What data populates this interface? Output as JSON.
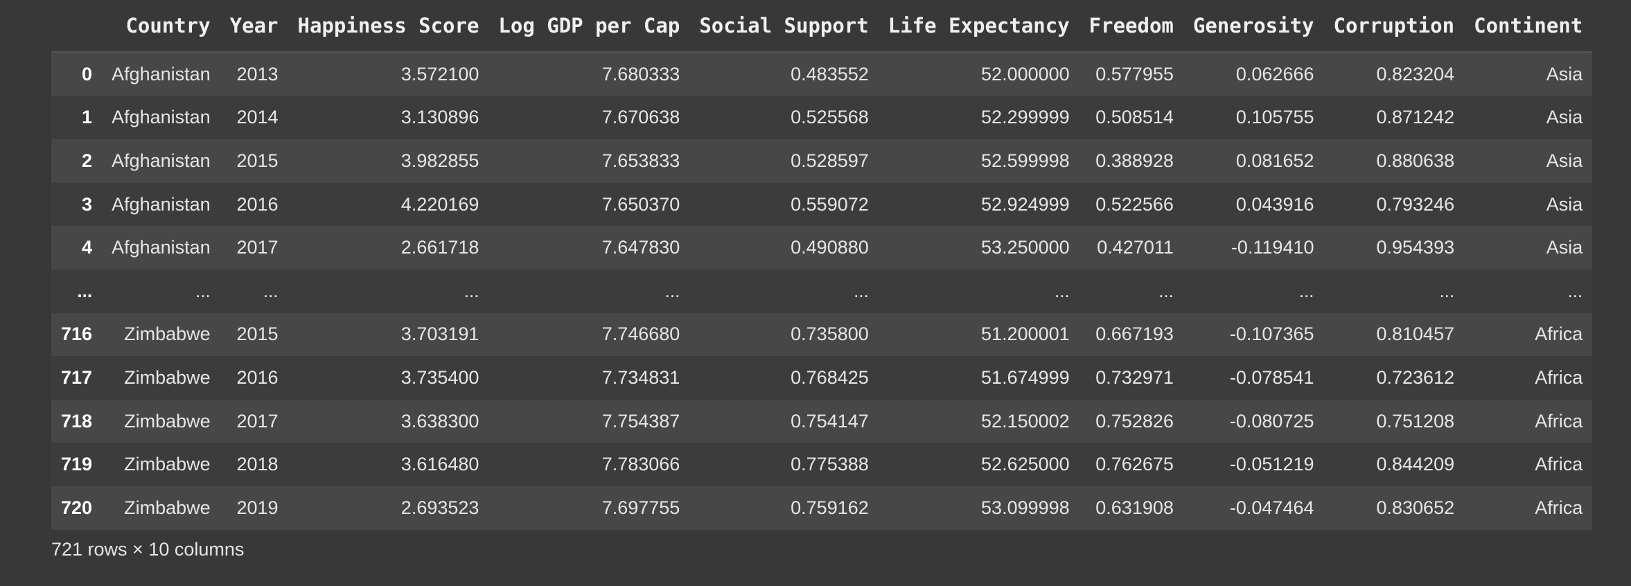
{
  "table": {
    "columns": [
      "",
      "Country",
      "Year",
      "Happiness Score",
      "Log GDP per Cap",
      "Social Support",
      "Life Expectancy",
      "Freedom",
      "Generosity",
      "Corruption",
      "Continent"
    ],
    "rows": [
      [
        "0",
        "Afghanistan",
        "2013",
        "3.572100",
        "7.680333",
        "0.483552",
        "52.000000",
        "0.577955",
        "0.062666",
        "0.823204",
        "Asia"
      ],
      [
        "1",
        "Afghanistan",
        "2014",
        "3.130896",
        "7.670638",
        "0.525568",
        "52.299999",
        "0.508514",
        "0.105755",
        "0.871242",
        "Asia"
      ],
      [
        "2",
        "Afghanistan",
        "2015",
        "3.982855",
        "7.653833",
        "0.528597",
        "52.599998",
        "0.388928",
        "0.081652",
        "0.880638",
        "Asia"
      ],
      [
        "3",
        "Afghanistan",
        "2016",
        "4.220169",
        "7.650370",
        "0.559072",
        "52.924999",
        "0.522566",
        "0.043916",
        "0.793246",
        "Asia"
      ],
      [
        "4",
        "Afghanistan",
        "2017",
        "2.661718",
        "7.647830",
        "0.490880",
        "53.250000",
        "0.427011",
        "-0.119410",
        "0.954393",
        "Asia"
      ],
      [
        "...",
        "...",
        "...",
        "...",
        "...",
        "...",
        "...",
        "...",
        "...",
        "...",
        "..."
      ],
      [
        "716",
        "Zimbabwe",
        "2015",
        "3.703191",
        "7.746680",
        "0.735800",
        "51.200001",
        "0.667193",
        "-0.107365",
        "0.810457",
        "Africa"
      ],
      [
        "717",
        "Zimbabwe",
        "2016",
        "3.735400",
        "7.734831",
        "0.768425",
        "51.674999",
        "0.732971",
        "-0.078541",
        "0.723612",
        "Africa"
      ],
      [
        "718",
        "Zimbabwe",
        "2017",
        "3.638300",
        "7.754387",
        "0.754147",
        "52.150002",
        "0.752826",
        "-0.080725",
        "0.751208",
        "Africa"
      ],
      [
        "719",
        "Zimbabwe",
        "2018",
        "3.616480",
        "7.783066",
        "0.775388",
        "52.625000",
        "0.762675",
        "-0.051219",
        "0.844209",
        "Africa"
      ],
      [
        "720",
        "Zimbabwe",
        "2019",
        "2.693523",
        "7.697755",
        "0.759162",
        "53.099998",
        "0.631908",
        "-0.047464",
        "0.830652",
        "Africa"
      ]
    ]
  },
  "shape_note": "721 rows × 10 columns"
}
